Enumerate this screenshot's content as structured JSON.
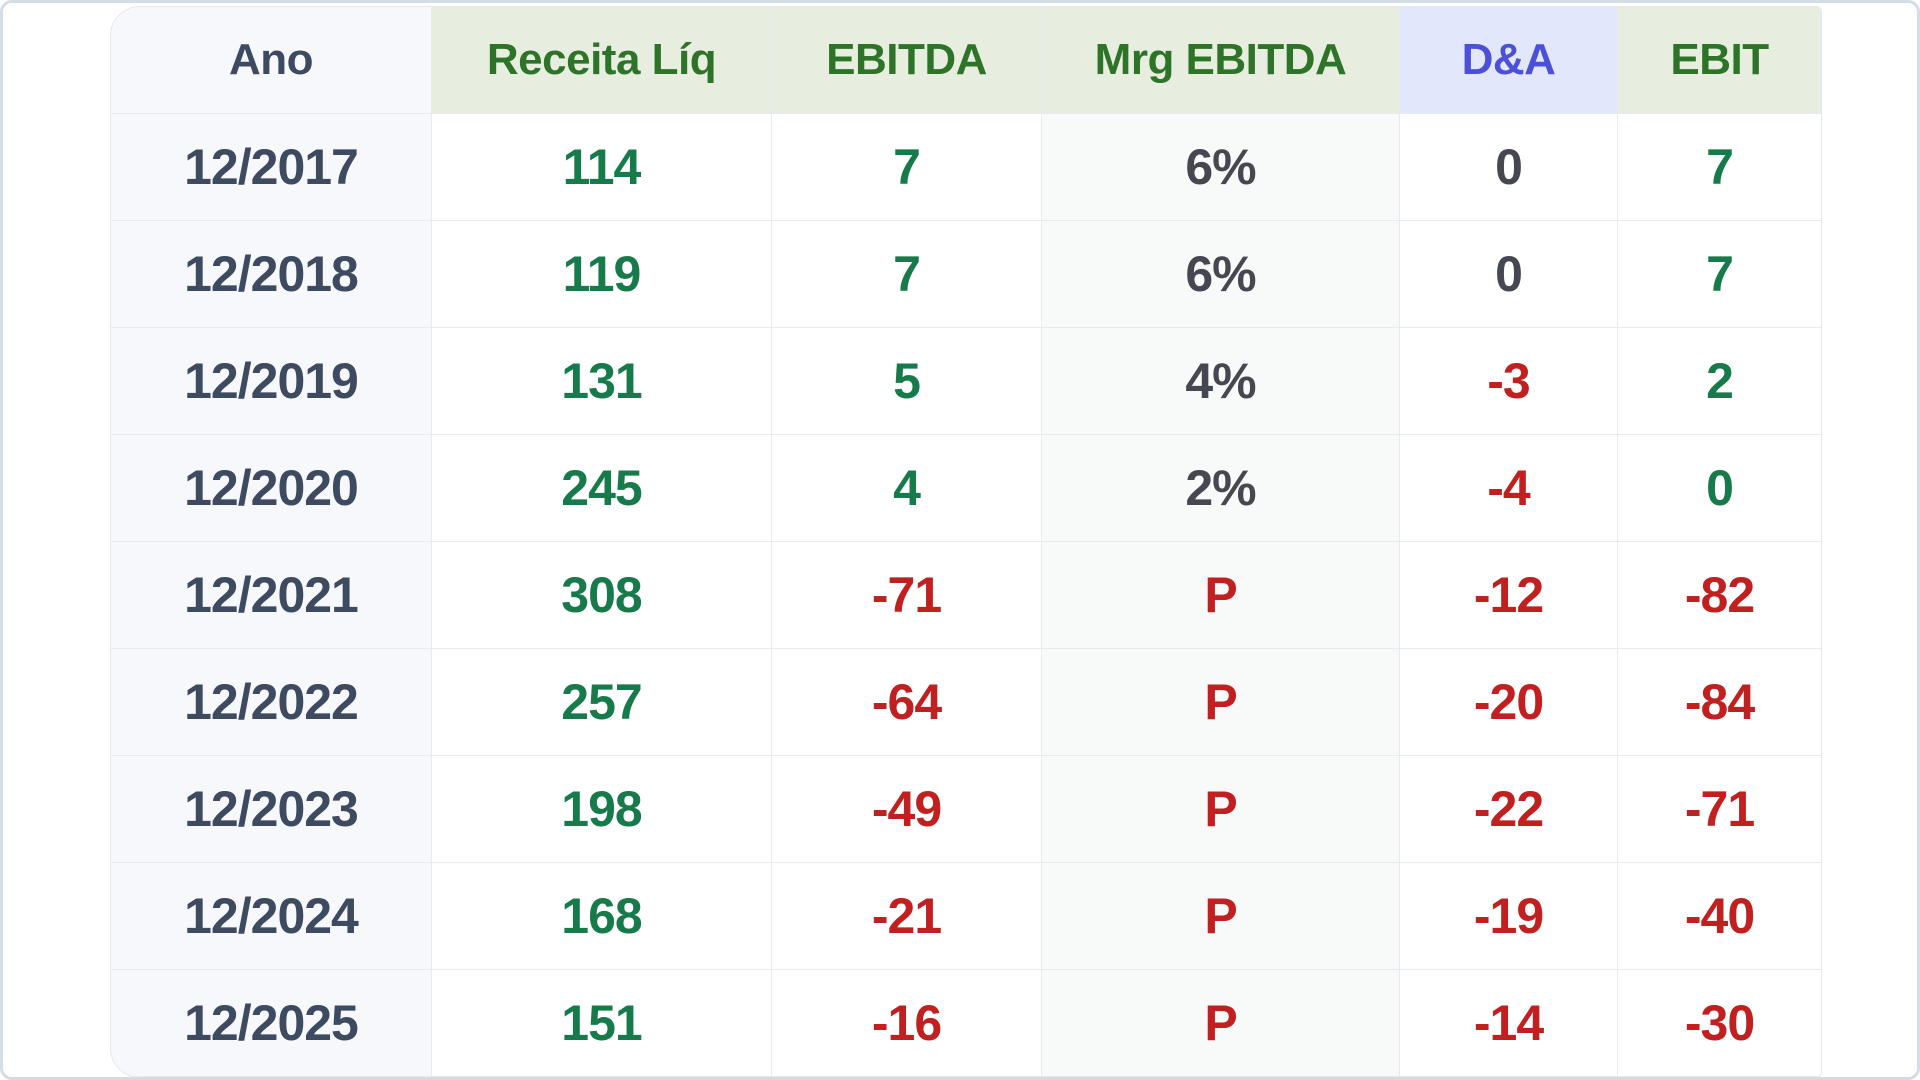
{
  "table": {
    "columns": [
      {
        "key": "ano",
        "label": "Ano",
        "header_style": "neutral"
      },
      {
        "key": "receita",
        "label": "Receita Líq",
        "header_style": "green"
      },
      {
        "key": "ebitda",
        "label": "EBITDA",
        "header_style": "green"
      },
      {
        "key": "mrg",
        "label": "Mrg EBITDA",
        "header_style": "green"
      },
      {
        "key": "da",
        "label": "D&A",
        "header_style": "blue"
      },
      {
        "key": "ebit",
        "label": "EBIT",
        "header_style": "green"
      }
    ],
    "rows": [
      {
        "year": "12/2017",
        "values": [
          {
            "col": "receita",
            "v": "114",
            "tone": "green"
          },
          {
            "col": "ebitda",
            "v": "7",
            "tone": "green"
          },
          {
            "col": "mrg",
            "v": "6%",
            "tone": "dark"
          },
          {
            "col": "da",
            "v": "0",
            "tone": "dark"
          },
          {
            "col": "ebit",
            "v": "7",
            "tone": "green"
          }
        ]
      },
      {
        "year": "12/2018",
        "values": [
          {
            "col": "receita",
            "v": "119",
            "tone": "green"
          },
          {
            "col": "ebitda",
            "v": "7",
            "tone": "green"
          },
          {
            "col": "mrg",
            "v": "6%",
            "tone": "dark"
          },
          {
            "col": "da",
            "v": "0",
            "tone": "dark"
          },
          {
            "col": "ebit",
            "v": "7",
            "tone": "green"
          }
        ]
      },
      {
        "year": "12/2019",
        "values": [
          {
            "col": "receita",
            "v": "131",
            "tone": "green"
          },
          {
            "col": "ebitda",
            "v": "5",
            "tone": "green"
          },
          {
            "col": "mrg",
            "v": "4%",
            "tone": "dark"
          },
          {
            "col": "da",
            "v": "-3",
            "tone": "red"
          },
          {
            "col": "ebit",
            "v": "2",
            "tone": "green"
          }
        ]
      },
      {
        "year": "12/2020",
        "values": [
          {
            "col": "receita",
            "v": "245",
            "tone": "green"
          },
          {
            "col": "ebitda",
            "v": "4",
            "tone": "green"
          },
          {
            "col": "mrg",
            "v": "2%",
            "tone": "dark"
          },
          {
            "col": "da",
            "v": "-4",
            "tone": "red"
          },
          {
            "col": "ebit",
            "v": "0",
            "tone": "green"
          }
        ]
      },
      {
        "year": "12/2021",
        "values": [
          {
            "col": "receita",
            "v": "308",
            "tone": "green"
          },
          {
            "col": "ebitda",
            "v": "-71",
            "tone": "red"
          },
          {
            "col": "mrg",
            "v": "P",
            "tone": "red"
          },
          {
            "col": "da",
            "v": "-12",
            "tone": "red"
          },
          {
            "col": "ebit",
            "v": "-82",
            "tone": "red"
          }
        ]
      },
      {
        "year": "12/2022",
        "values": [
          {
            "col": "receita",
            "v": "257",
            "tone": "green"
          },
          {
            "col": "ebitda",
            "v": "-64",
            "tone": "red"
          },
          {
            "col": "mrg",
            "v": "P",
            "tone": "red"
          },
          {
            "col": "da",
            "v": "-20",
            "tone": "red"
          },
          {
            "col": "ebit",
            "v": "-84",
            "tone": "red"
          }
        ]
      },
      {
        "year": "12/2023",
        "values": [
          {
            "col": "receita",
            "v": "198",
            "tone": "green"
          },
          {
            "col": "ebitda",
            "v": "-49",
            "tone": "red"
          },
          {
            "col": "mrg",
            "v": "P",
            "tone": "red"
          },
          {
            "col": "da",
            "v": "-22",
            "tone": "red"
          },
          {
            "col": "ebit",
            "v": "-71",
            "tone": "red"
          }
        ]
      },
      {
        "year": "12/2024",
        "values": [
          {
            "col": "receita",
            "v": "168",
            "tone": "green"
          },
          {
            "col": "ebitda",
            "v": "-21",
            "tone": "red"
          },
          {
            "col": "mrg",
            "v": "P",
            "tone": "red"
          },
          {
            "col": "da",
            "v": "-19",
            "tone": "red"
          },
          {
            "col": "ebit",
            "v": "-40",
            "tone": "red"
          }
        ]
      },
      {
        "year": "12/2025",
        "values": [
          {
            "col": "receita",
            "v": "151",
            "tone": "green"
          },
          {
            "col": "ebitda",
            "v": "-16",
            "tone": "red"
          },
          {
            "col": "mrg",
            "v": "P",
            "tone": "red"
          },
          {
            "col": "da",
            "v": "-14",
            "tone": "red"
          },
          {
            "col": "ebit",
            "v": "-30",
            "tone": "red"
          }
        ]
      }
    ]
  },
  "colors": {
    "header_green_bg": "#e7eedf",
    "header_green_text": "#2e7428",
    "header_blue_bg": "#e3e7fb",
    "header_blue_text": "#4b50d9",
    "ano_column_bg": "#f6f8fb",
    "mrg_column_bg": "#f8f9f9",
    "value_green": "#177a4b",
    "value_red": "#c02120",
    "value_dark": "#454851",
    "year_text": "#3d4a5f",
    "grid_line": "#e7eaee",
    "frame_border": "#d4dce6"
  }
}
